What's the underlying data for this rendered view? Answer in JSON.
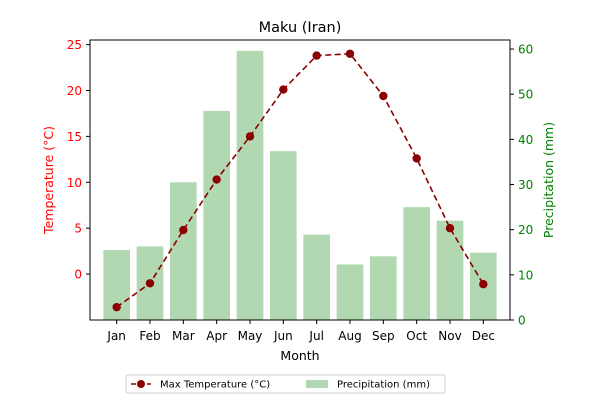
{
  "chart_data": {
    "type": "bar",
    "title": "Maku (Iran)",
    "xlabel": "Month",
    "categories": [
      "Jan",
      "Feb",
      "Mar",
      "Apr",
      "May",
      "Jun",
      "Jul",
      "Aug",
      "Sep",
      "Oct",
      "Nov",
      "Dec"
    ],
    "series": [
      {
        "name": "Max Temperature (°C)",
        "type": "line",
        "axis": "left",
        "color": "#8b0000",
        "values": [
          -3.6,
          -1.0,
          4.8,
          10.3,
          15.0,
          20.1,
          23.8,
          24.0,
          19.4,
          12.6,
          5.0,
          -1.1
        ]
      },
      {
        "name": "Precipitation (mm)",
        "type": "bar",
        "axis": "right",
        "color": "#b2d8b2",
        "values": [
          15.5,
          16.3,
          30.5,
          46.3,
          59.6,
          37.4,
          18.9,
          12.3,
          14.1,
          25.0,
          22.0,
          14.9
        ]
      }
    ],
    "y_left": {
      "label": "Temperature (°C)",
      "color": "#ff0000",
      "ylim": [
        -5,
        25.5
      ],
      "ticks": [
        0,
        5,
        10,
        15,
        20,
        25
      ]
    },
    "y_right": {
      "label": "Precipitation (mm)",
      "color": "#008000",
      "ylim": [
        0,
        62
      ],
      "ticks": [
        0,
        10,
        20,
        30,
        40,
        50,
        60
      ]
    },
    "grid": false,
    "legend": "bottom-center"
  }
}
